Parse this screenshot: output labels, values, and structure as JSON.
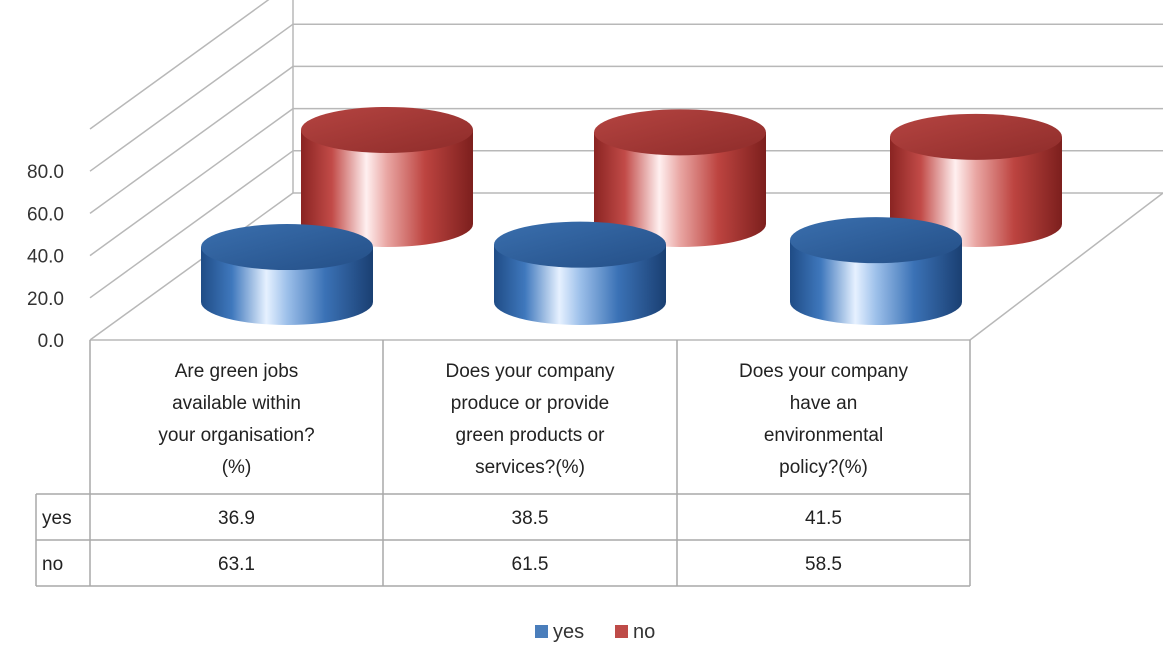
{
  "chart_data": {
    "type": "bar",
    "style": "3d-cylinder",
    "categories": [
      "Are green jobs available within your organisation? (%)",
      "Does your company produce or provide green products or services?(%)",
      "Does your company have an environmental policy?(%)"
    ],
    "category_lines": [
      [
        "Are green jobs",
        "available within",
        "your organisation?",
        "(%)"
      ],
      [
        "Does your company",
        "produce or provide",
        "green products or",
        "services?(%)"
      ],
      [
        "Does your company",
        "have an",
        "environmental",
        "policy?(%)"
      ]
    ],
    "series": [
      {
        "name": "yes",
        "values": [
          36.9,
          38.5,
          41.5
        ],
        "color": "#4a7ebb"
      },
      {
        "name": "no",
        "values": [
          63.1,
          61.5,
          58.5
        ],
        "color": "#be4b48"
      }
    ],
    "value_labels": [
      [
        "36.9",
        "38.5",
        "41.5"
      ],
      [
        "63.1",
        "61.5",
        "58.5"
      ]
    ],
    "yticks": [
      "0.0",
      "20.0",
      "40.0",
      "60.0",
      "80.0"
    ],
    "ylim": [
      0,
      100
    ],
    "legend_position": "bottom",
    "data_table": true
  }
}
